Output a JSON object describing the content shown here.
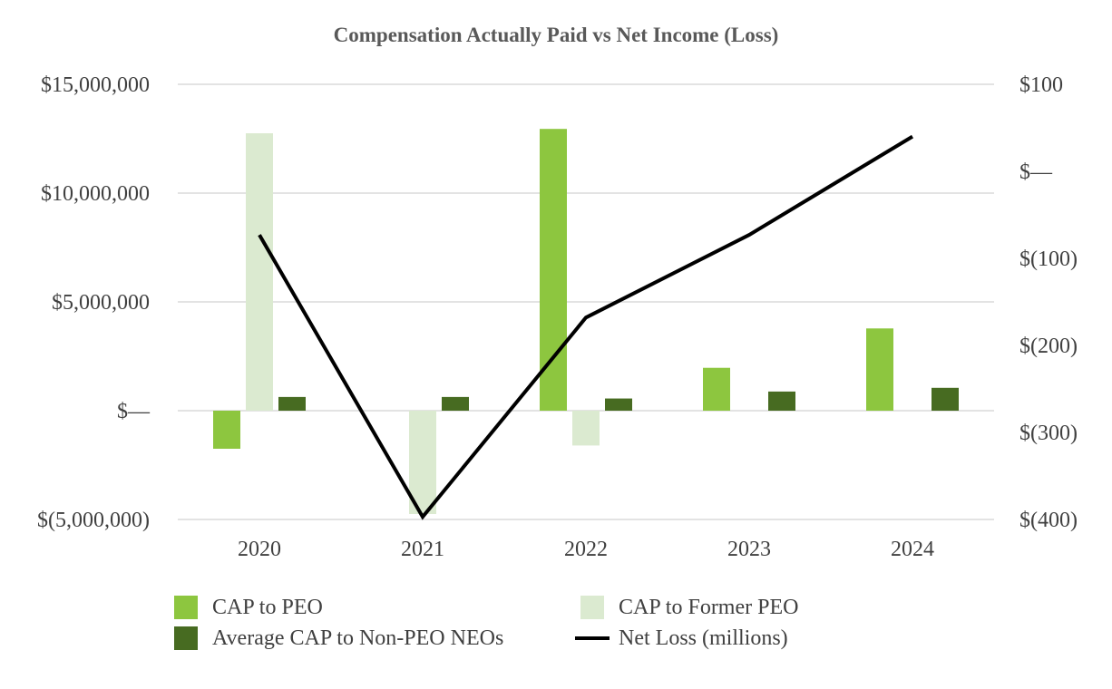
{
  "chart_data": {
    "type": "bar",
    "title": "Compensation Actually Paid vs Net Income (Loss)",
    "categories": [
      "2020",
      "2021",
      "2022",
      "2023",
      "2024"
    ],
    "left_axis": {
      "ylim": [
        -5000000,
        15000000
      ],
      "ticks": [
        15000000,
        10000000,
        5000000,
        0,
        -5000000
      ],
      "tick_labels": [
        "$15,000,000",
        "$10,000,000",
        "$5,000,000",
        "$—",
        "$(5,000,000)"
      ]
    },
    "right_axis": {
      "ylim": [
        -400,
        100
      ],
      "ticks": [
        100,
        0,
        -100,
        -200,
        -300,
        -400
      ],
      "tick_labels": [
        "$100",
        "$—",
        "$(100)",
        "$(200)",
        "$(300)",
        "$(400)"
      ]
    },
    "series": [
      {
        "name": "CAP to PEO",
        "type": "bar",
        "axis": "left",
        "color": "#8dc63f",
        "values": [
          -1750000,
          null,
          12950000,
          1970000,
          3780000
        ]
      },
      {
        "name": "CAP to Former PEO",
        "type": "bar",
        "axis": "left",
        "color": "#dbead0",
        "values": [
          12750000,
          -4750000,
          -1600000,
          null,
          null
        ]
      },
      {
        "name": "Average CAP to Non-PEO NEOs",
        "type": "bar",
        "axis": "left",
        "color": "#476b21",
        "values": [
          630000,
          630000,
          560000,
          880000,
          1050000
        ]
      },
      {
        "name": "Net Loss (millions)",
        "type": "line",
        "axis": "right",
        "color": "#000000",
        "values": [
          -73,
          -397,
          -168,
          -73,
          40
        ]
      }
    ],
    "grid": true,
    "legend_position": "bottom"
  }
}
